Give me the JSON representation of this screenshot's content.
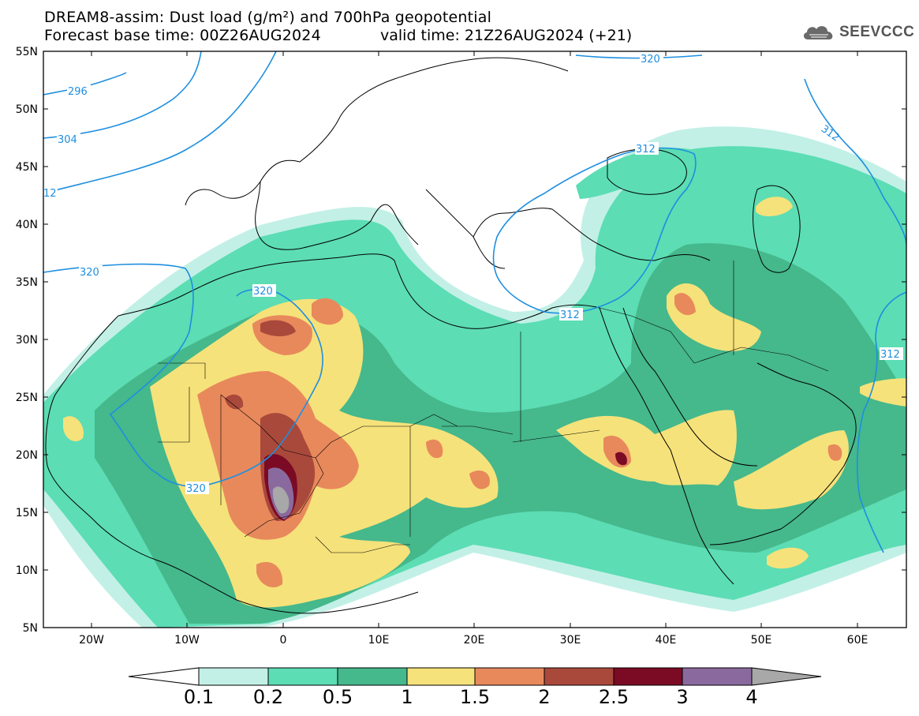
{
  "title": {
    "line1": "DREAM8-assim: Dust load (g/m²) and 700hPa geopotential",
    "line2_left": "Forecast base time: 00Z26AUG2024",
    "line2_right": "valid time: 21Z26AUG2024 (+21)"
  },
  "logo": {
    "text": "SEEVCCC",
    "icon": "cloud-icon"
  },
  "map": {
    "lat_labels": [
      "55N",
      "50N",
      "45N",
      "40N",
      "35N",
      "30N",
      "25N",
      "20N",
      "15N",
      "10N",
      "5N"
    ],
    "lon_labels": [
      "20W",
      "10W",
      "0",
      "10E",
      "20E",
      "30E",
      "40E",
      "50E",
      "60E"
    ],
    "contour_labels": [
      "296",
      "304",
      "312",
      "320",
      "320",
      "320",
      "312",
      "312",
      "320",
      "312"
    ],
    "background_color": "#ffffff",
    "coast_color": "#000000",
    "contour_color": "#1e8fe0"
  },
  "colorbar": {
    "labels": [
      "0.1",
      "0.2",
      "0.5",
      "1",
      "1.5",
      "2",
      "2.5",
      "3",
      "4"
    ],
    "colors": [
      "#c2f0e6",
      "#5cddb4",
      "#45b88c",
      "#f6e27a",
      "#e8895c",
      "#a9493b",
      "#7b0a25",
      "#8a6a9e",
      "#a8a8a8"
    ]
  }
}
